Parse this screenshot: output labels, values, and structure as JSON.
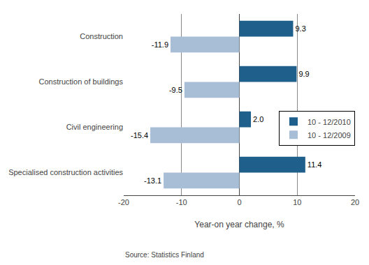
{
  "chart_data": {
    "type": "bar",
    "orientation": "horizontal",
    "categories": [
      "Construction",
      "Construction of buildings",
      "Civil engineering",
      "Specialised construction activities"
    ],
    "series": [
      {
        "name": "10 - 12/2010",
        "color": "#1F5F8B",
        "values": [
          9.3,
          9.9,
          2.0,
          11.4
        ],
        "value_labels": [
          "9.3",
          "9.9",
          "2.0",
          "11.4"
        ]
      },
      {
        "name": "10 - 12/2009",
        "color": "#A8BDD6",
        "values": [
          -11.9,
          -9.5,
          -15.4,
          -13.1
        ]
      }
    ],
    "xlabel": "Year-on year change, %",
    "xlim": [
      -20,
      20
    ],
    "xticks": [
      -20,
      -10,
      0,
      10,
      20
    ],
    "grid": true,
    "legend": "lower right",
    "data_labels": true,
    "annotations": [
      "Source: Statistics Finland"
    ]
  }
}
